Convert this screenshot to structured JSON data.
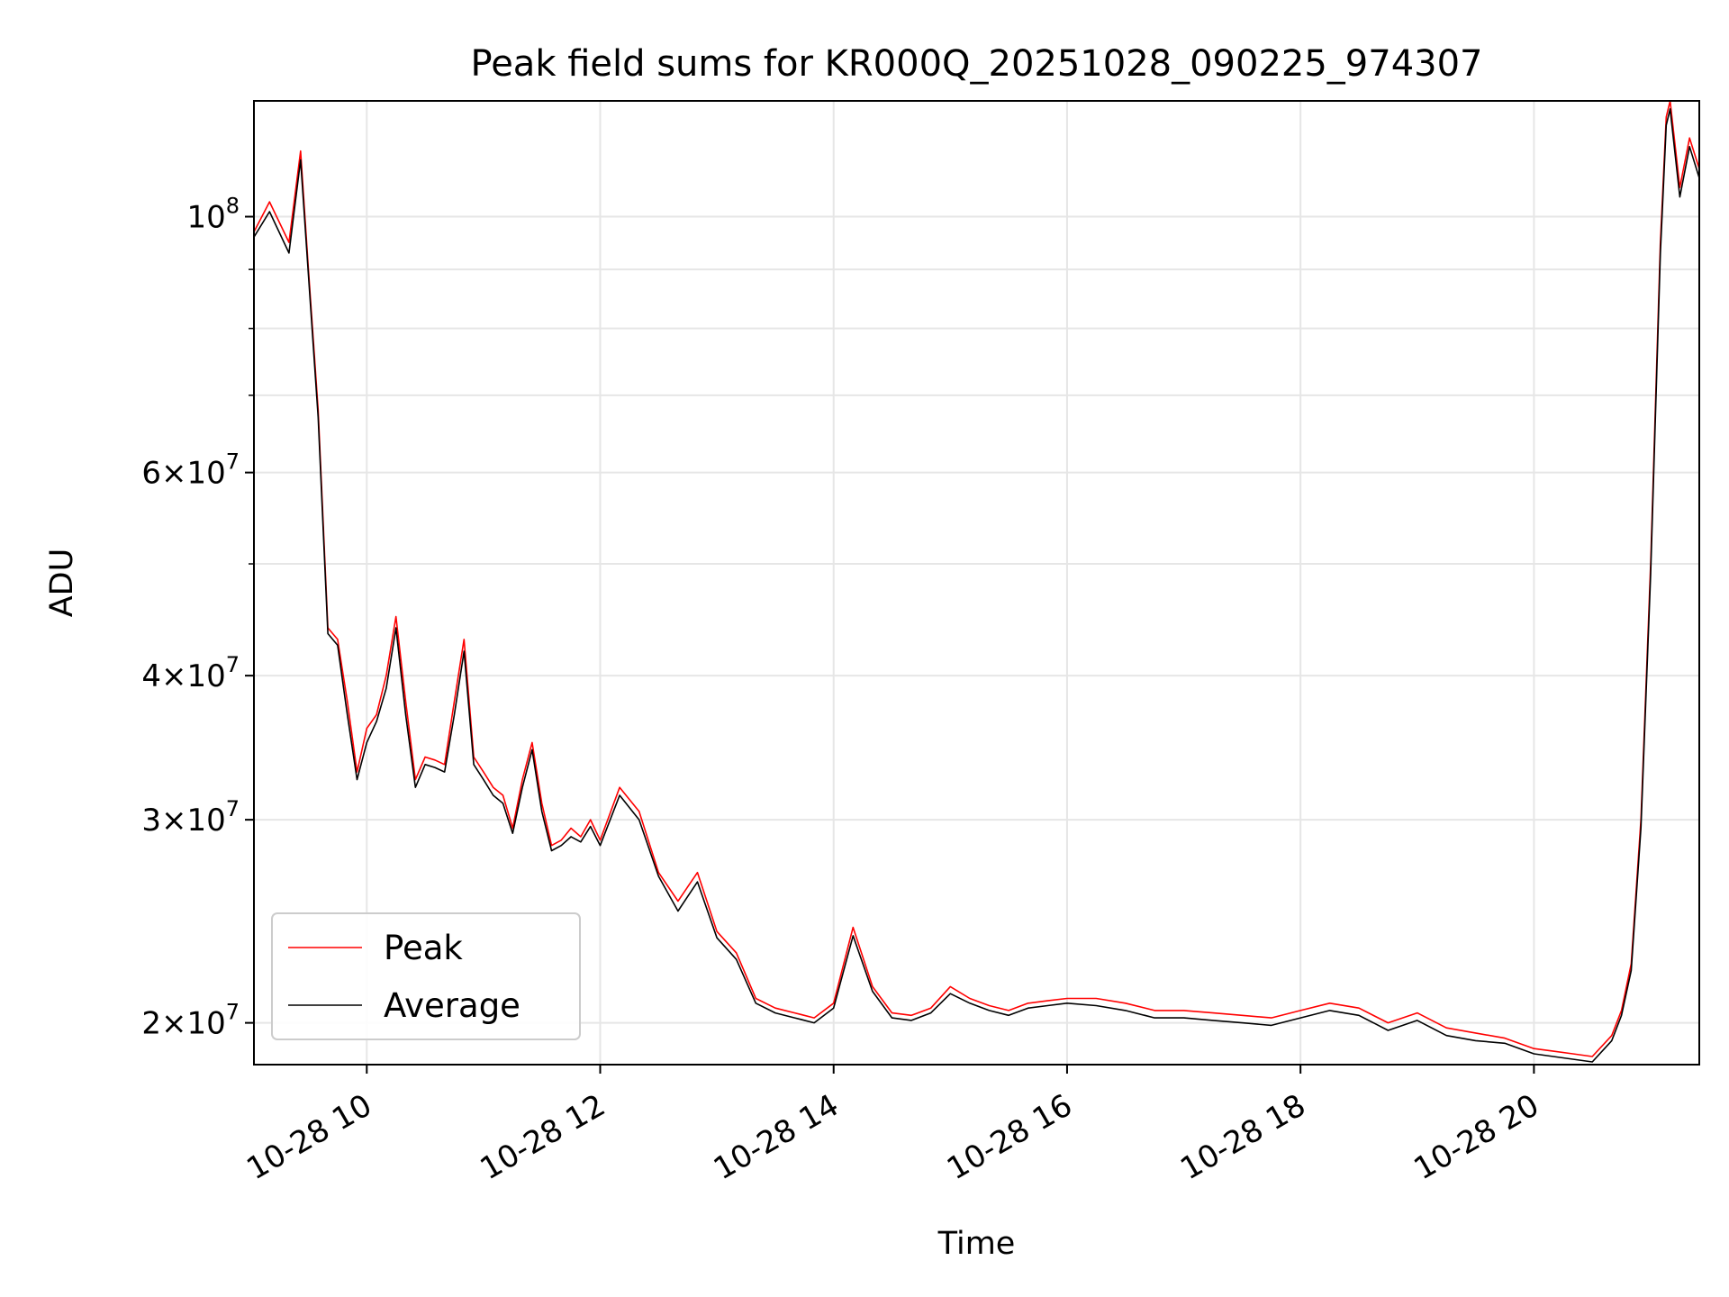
{
  "chart_data": {
    "type": "line",
    "title": "Peak field sums for KR000Q_20251028_090225_974307",
    "xlabel": "Time",
    "ylabel": "ADU",
    "yscale": "log",
    "x_start": "2025-10-28 09:02",
    "x_end": "2025-10-28 21:25",
    "ylim": [
      18400000,
      126000000
    ],
    "grid": true,
    "legend_position": "lower-left",
    "x_tick_values": [
      "2025-10-28 10:00",
      "2025-10-28 12:00",
      "2025-10-28 14:00",
      "2025-10-28 16:00",
      "2025-10-28 18:00",
      "2025-10-28 20:00"
    ],
    "x_tick_labels": [
      "10-28 10",
      "10-28 12",
      "10-28 14",
      "10-28 16",
      "10-28 18",
      "10-28 20"
    ],
    "y_major_ticks": [
      {
        "value": 20000000,
        "label": "2×10^7",
        "mantissa": "2",
        "exponent": "7"
      },
      {
        "value": 30000000,
        "label": "3×10^7",
        "mantissa": "3",
        "exponent": "7"
      },
      {
        "value": 40000000,
        "label": "4×10^7",
        "mantissa": "4",
        "exponent": "7"
      },
      {
        "value": 60000000,
        "label": "6×10^7",
        "mantissa": "6",
        "exponent": "7"
      },
      {
        "value": 100000000,
        "label": "10^8",
        "mantissa": "",
        "exponent": "8"
      }
    ],
    "y_minor_gridlines": [
      50000000,
      70000000,
      80000000,
      90000000
    ],
    "series": [
      {
        "name": "Peak",
        "color": "#ff0000",
        "time": [
          "09:02",
          "09:10",
          "09:20",
          "09:26",
          "09:30",
          "09:35",
          "09:40",
          "09:45",
          "09:50",
          "09:55",
          "10:00",
          "10:05",
          "10:10",
          "10:15",
          "10:20",
          "10:25",
          "10:30",
          "10:35",
          "10:40",
          "10:45",
          "10:50",
          "10:55",
          "11:00",
          "11:05",
          "11:10",
          "11:15",
          "11:20",
          "11:25",
          "11:30",
          "11:35",
          "11:40",
          "11:45",
          "11:50",
          "11:55",
          "12:00",
          "12:10",
          "12:20",
          "12:30",
          "12:40",
          "12:50",
          "13:00",
          "13:10",
          "13:20",
          "13:30",
          "13:40",
          "13:50",
          "14:00",
          "14:10",
          "14:20",
          "14:30",
          "14:40",
          "14:50",
          "15:00",
          "15:10",
          "15:20",
          "15:30",
          "15:40",
          "15:50",
          "16:00",
          "16:15",
          "16:30",
          "16:45",
          "17:00",
          "17:15",
          "17:30",
          "17:45",
          "18:00",
          "18:15",
          "18:30",
          "18:45",
          "19:00",
          "19:15",
          "19:30",
          "19:45",
          "20:00",
          "20:10",
          "20:20",
          "20:30",
          "20:40",
          "20:45",
          "20:50",
          "20:55",
          "21:00",
          "21:05",
          "21:08",
          "21:10",
          "21:15",
          "21:20",
          "21:25"
        ],
        "values": [
          97000000,
          103000000,
          95000000,
          114000000,
          90000000,
          68000000,
          44000000,
          43000000,
          38000000,
          33000000,
          36000000,
          37000000,
          40000000,
          45000000,
          38000000,
          32500000,
          34000000,
          33800000,
          33500000,
          38000000,
          43000000,
          34000000,
          33000000,
          32000000,
          31500000,
          29500000,
          32500000,
          35000000,
          31000000,
          28500000,
          28800000,
          29500000,
          29000000,
          30000000,
          28800000,
          32000000,
          30500000,
          27000000,
          25500000,
          27000000,
          24000000,
          23000000,
          21000000,
          20600000,
          20400000,
          20200000,
          20800000,
          24200000,
          21500000,
          20400000,
          20300000,
          20600000,
          21500000,
          21000000,
          20700000,
          20500000,
          20800000,
          20900000,
          21000000,
          21000000,
          20800000,
          20500000,
          20500000,
          20400000,
          20300000,
          20200000,
          20500000,
          20800000,
          20600000,
          20000000,
          20400000,
          19800000,
          19600000,
          19400000,
          19000000,
          18900000,
          18800000,
          18700000,
          19500000,
          20500000,
          22500000,
          30000000,
          50000000,
          95000000,
          122000000,
          126000000,
          106000000,
          117000000,
          110000000
        ]
      },
      {
        "name": "Average",
        "color": "#000000",
        "time": [
          "09:02",
          "09:10",
          "09:20",
          "09:26",
          "09:30",
          "09:35",
          "09:40",
          "09:45",
          "09:50",
          "09:55",
          "10:00",
          "10:05",
          "10:10",
          "10:15",
          "10:20",
          "10:25",
          "10:30",
          "10:35",
          "10:40",
          "10:45",
          "10:50",
          "10:55",
          "11:00",
          "11:05",
          "11:10",
          "11:15",
          "11:20",
          "11:25",
          "11:30",
          "11:35",
          "11:40",
          "11:45",
          "11:50",
          "11:55",
          "12:00",
          "12:10",
          "12:20",
          "12:30",
          "12:40",
          "12:50",
          "13:00",
          "13:10",
          "13:20",
          "13:30",
          "13:40",
          "13:50",
          "14:00",
          "14:10",
          "14:20",
          "14:30",
          "14:40",
          "14:50",
          "15:00",
          "15:10",
          "15:20",
          "15:30",
          "15:40",
          "15:50",
          "16:00",
          "16:15",
          "16:30",
          "16:45",
          "17:00",
          "17:15",
          "17:30",
          "17:45",
          "18:00",
          "18:15",
          "18:30",
          "18:45",
          "19:00",
          "19:15",
          "19:30",
          "19:45",
          "20:00",
          "20:10",
          "20:20",
          "20:30",
          "20:40",
          "20:45",
          "20:50",
          "20:55",
          "21:00",
          "21:05",
          "21:08",
          "21:10",
          "21:15",
          "21:20",
          "21:25"
        ],
        "values": [
          96000000,
          101000000,
          93000000,
          112000000,
          89000000,
          67000000,
          43500000,
          42500000,
          37000000,
          32500000,
          35000000,
          36500000,
          39000000,
          44000000,
          37000000,
          32000000,
          33500000,
          33300000,
          33000000,
          37000000,
          42000000,
          33500000,
          32500000,
          31500000,
          31000000,
          29200000,
          32000000,
          34500000,
          30500000,
          28200000,
          28500000,
          29000000,
          28700000,
          29600000,
          28500000,
          31500000,
          30000000,
          26800000,
          25000000,
          26500000,
          23700000,
          22700000,
          20800000,
          20400000,
          20200000,
          20000000,
          20600000,
          23800000,
          21300000,
          20200000,
          20100000,
          20400000,
          21200000,
          20800000,
          20500000,
          20300000,
          20600000,
          20700000,
          20800000,
          20700000,
          20500000,
          20200000,
          20200000,
          20100000,
          20000000,
          19900000,
          20200000,
          20500000,
          20300000,
          19700000,
          20100000,
          19500000,
          19300000,
          19200000,
          18800000,
          18700000,
          18600000,
          18500000,
          19300000,
          20300000,
          22200000,
          29500000,
          49000000,
          93000000,
          120000000,
          124000000,
          104000000,
          115000000,
          108000000
        ]
      }
    ]
  }
}
